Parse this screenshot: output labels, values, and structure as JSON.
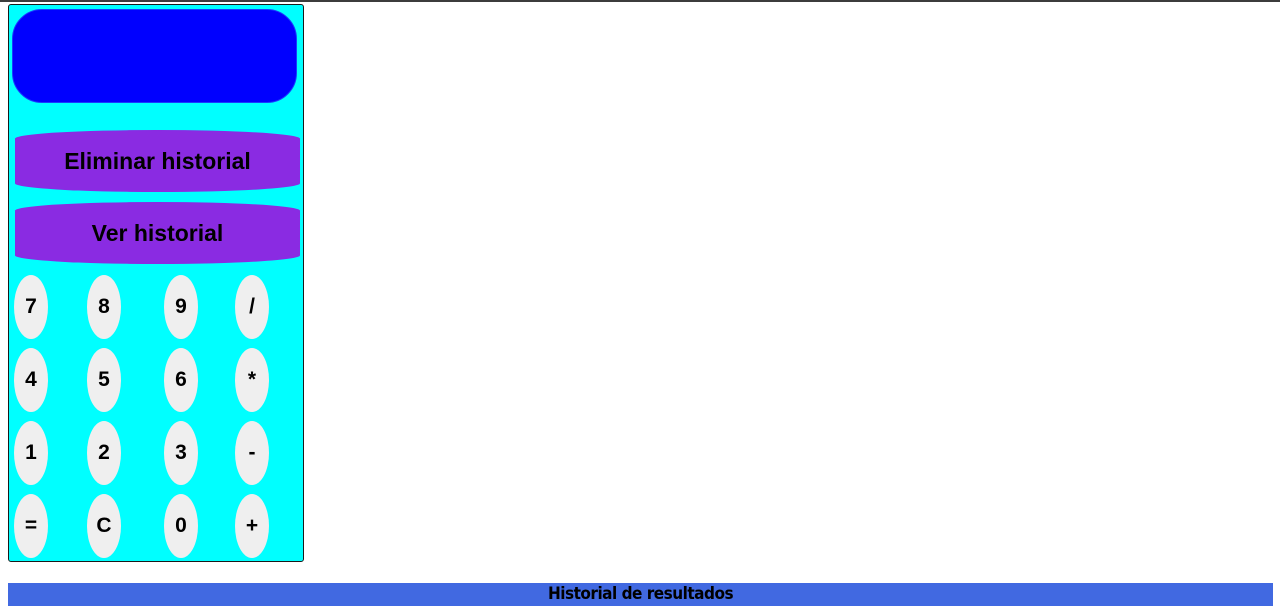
{
  "calculator": {
    "display_value": "",
    "clear_history_label": "Eliminar historial",
    "view_history_label": "Ver historial",
    "keys": [
      {
        "label": "7",
        "name": "key-7"
      },
      {
        "label": "8",
        "name": "key-8"
      },
      {
        "label": "9",
        "name": "key-9"
      },
      {
        "label": "/",
        "name": "key-divide"
      },
      {
        "label": "4",
        "name": "key-4"
      },
      {
        "label": "5",
        "name": "key-5"
      },
      {
        "label": "6",
        "name": "key-6"
      },
      {
        "label": "*",
        "name": "key-multiply"
      },
      {
        "label": "1",
        "name": "key-1"
      },
      {
        "label": "2",
        "name": "key-2"
      },
      {
        "label": "3",
        "name": "key-3"
      },
      {
        "label": "-",
        "name": "key-subtract"
      },
      {
        "label": "=",
        "name": "key-equals"
      },
      {
        "label": "C",
        "name": "key-clear"
      },
      {
        "label": "0",
        "name": "key-0"
      },
      {
        "label": "+",
        "name": "key-add"
      }
    ]
  },
  "history": {
    "title": "Historial de resultados"
  },
  "colors": {
    "calculator_bg": "#00ffff",
    "display_bg": "#0000ff",
    "action_button_bg": "#8a2be2",
    "key_bg": "#efefef",
    "history_bar_bg": "#4169e1"
  }
}
